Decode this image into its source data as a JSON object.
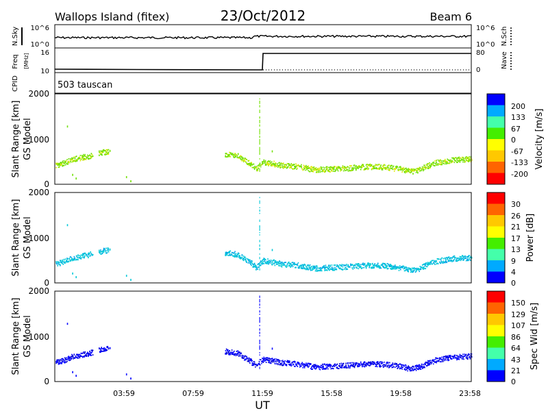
{
  "header": {
    "site": "Wallops Island  (fitex)",
    "date": "23/Oct/2012",
    "beam": "Beam 6"
  },
  "top_panels": {
    "noise": {
      "left_label_1": "N.Sky",
      "left_label_2": "",
      "left_ticks": [
        "10^6",
        "10^0"
      ],
      "right_label_1": "N.Sch",
      "right_ticks": [
        "10^6",
        "10^0"
      ]
    },
    "freq": {
      "left_label_1": "Freq",
      "left_label_2": "[MHz]",
      "left_ticks": [
        "16",
        "10"
      ],
      "right_label_1": "Nave",
      "right_ticks": [
        "80",
        "0"
      ]
    },
    "cpid": {
      "left_label": "CPID",
      "program_text": "503 tauscan"
    }
  },
  "axes": {
    "x_label": "UT",
    "x_ticks": [
      "03:59",
      "07:59",
      "11:59",
      "15:58",
      "19:58",
      "23:58"
    ],
    "y_label": "Slant Range [km]",
    "y_sublabel": "GS Model",
    "y_ticks": [
      "2000",
      "1000",
      "0"
    ]
  },
  "chart_data": [
    {
      "type": "scatter",
      "name": "velocity",
      "colorbar_label": "Velocity [m/s]",
      "colorbar_ticks": [
        "200",
        "133",
        "67",
        "0",
        "-67",
        "-133",
        "-200"
      ],
      "colors": [
        "#0000ff",
        "#00aaff",
        "#44ffaa",
        "#44ee00",
        "#ffff00",
        "#ffc800",
        "#ff6400",
        "#ff0000"
      ],
      "trace_color": "#70e000",
      "trace_color_alt": "#e0e800",
      "ylim": [
        0,
        2000
      ],
      "xlim_hours": [
        0,
        24
      ],
      "echo_path": {
        "x_hours": [
          0.05,
          0.5,
          1.0,
          1.5,
          2.0,
          2.5,
          3.0,
          9.8,
          10.5,
          11.2,
          11.6,
          12.0,
          12.5,
          13.0,
          14.0,
          15.0,
          16.0,
          17.0,
          18.0,
          19.0,
          20.0,
          20.5,
          21.0,
          21.5,
          22.0,
          23.0,
          24.0
        ],
        "range_km": [
          430,
          480,
          560,
          600,
          640,
          700,
          730,
          680,
          640,
          480,
          350,
          500,
          470,
          430,
          400,
          330,
          350,
          370,
          400,
          390,
          340,
          290,
          330,
          420,
          490,
          550,
          570
        ]
      }
    },
    {
      "type": "scatter",
      "name": "power",
      "colorbar_label": "Power [dB]",
      "colorbar_ticks": [
        "30",
        "26",
        "21",
        "17",
        "13",
        "9",
        "4",
        "0"
      ],
      "colors": [
        "#ff0000",
        "#ff6400",
        "#ffc800",
        "#ffff00",
        "#44ee00",
        "#44ffaa",
        "#00aaff",
        "#0000ff"
      ],
      "trace_color": "#00c8d8",
      "trace_color_alt": "#00a0e8",
      "ylim": [
        0,
        2000
      ]
    },
    {
      "type": "scatter",
      "name": "spectral_width",
      "colorbar_label": "Spec Wid [m/s]",
      "colorbar_ticks": [
        "150",
        "129",
        "107",
        "86",
        "64",
        "43",
        "21",
        "0"
      ],
      "colors": [
        "#ff0000",
        "#ff6400",
        "#ffc800",
        "#ffff00",
        "#44ee00",
        "#44ffaa",
        "#00aaff",
        "#0000ff"
      ],
      "trace_color": "#0000ff",
      "trace_color_alt": "#0000cc",
      "ylim": [
        0,
        2000
      ]
    }
  ]
}
